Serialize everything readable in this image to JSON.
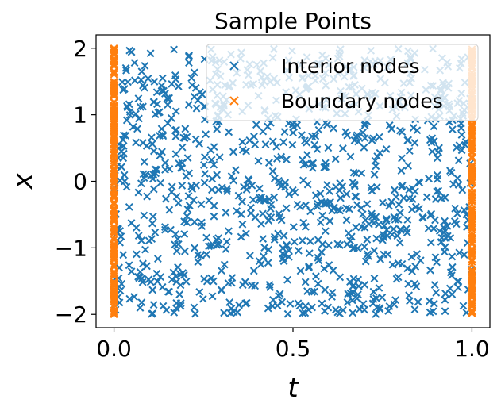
{
  "chart_data": {
    "type": "scatter",
    "title": "Sample Points",
    "xlabel": "t",
    "ylabel": "x",
    "xlim": [
      -0.05,
      1.05
    ],
    "ylim": [
      -2.2,
      2.2
    ],
    "xticks": [
      0.0,
      0.5,
      1.0
    ],
    "xtick_labels": [
      "0.0",
      "0.5",
      "1.0"
    ],
    "yticks": [
      2,
      1,
      0,
      -1,
      -2
    ],
    "ytick_labels": [
      "2",
      "1",
      "0",
      "−1",
      "−2"
    ],
    "grid": false,
    "legend_position": "top-right",
    "marker": "x",
    "series": [
      {
        "name": "Interior nodes",
        "color": "#1f77b4",
        "x_range": [
          0.0,
          1.0
        ],
        "y_range": [
          -2.0,
          2.0
        ],
        "approx_count": 1000
      },
      {
        "name": "Boundary nodes",
        "color": "#ff7f0e",
        "x_values": [
          0.0,
          1.0
        ],
        "y_range": [
          -2.0,
          2.0
        ],
        "approx_count_per_edge": 200
      }
    ]
  }
}
